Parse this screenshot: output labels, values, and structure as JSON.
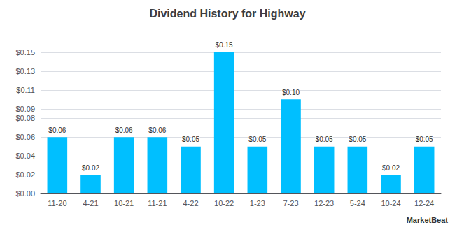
{
  "chart_data": {
    "type": "bar",
    "title": "Dividend History for Highway",
    "categories": [
      "11-20",
      "4-21",
      "10-21",
      "11-21",
      "4-22",
      "10-22",
      "1-23",
      "7-23",
      "12-23",
      "5-24",
      "10-24",
      "12-24"
    ],
    "values": [
      0.06,
      0.02,
      0.06,
      0.06,
      0.05,
      0.15,
      0.05,
      0.1,
      0.05,
      0.05,
      0.02,
      0.05
    ],
    "value_labels": [
      "$0.06",
      "$0.02",
      "$0.06",
      "$0.06",
      "$0.05",
      "$0.15",
      "$0.05",
      "$0.10",
      "$0.05",
      "$0.05",
      "$0.02",
      "$0.05"
    ],
    "data_labels": true,
    "color": "#00BFFF",
    "ylim": [
      0,
      0.17
    ],
    "yticks": [
      {
        "value": 0.0,
        "label": "$0.00"
      },
      {
        "value": 0.02,
        "label": "$0.02"
      },
      {
        "value": 0.04,
        "label": "$0.04"
      },
      {
        "value": 0.06,
        "label": "$0.06"
      },
      {
        "value": 0.08,
        "label": "$0.08"
      },
      {
        "value": 0.09,
        "label": "$0.09"
      },
      {
        "value": 0.11,
        "label": "$0.11"
      },
      {
        "value": 0.13,
        "label": "$0.13"
      },
      {
        "value": 0.15,
        "label": "$0.15"
      }
    ],
    "grid": true,
    "annotations": [
      "MarketBeat"
    ]
  }
}
